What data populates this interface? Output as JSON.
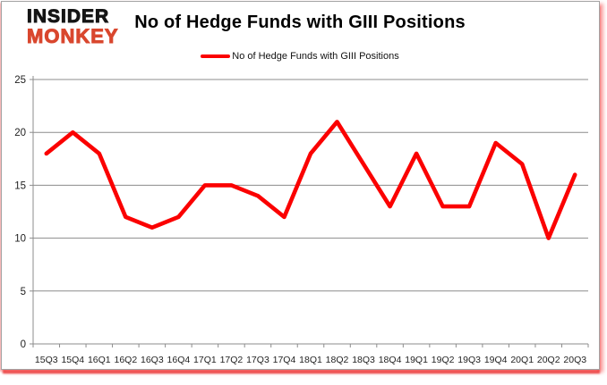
{
  "logo": {
    "line1": "INSIDER",
    "line2": "MONKEY"
  },
  "header": {
    "title": "No of Hedge Funds with GIII Positions"
  },
  "legend": {
    "label": "No of Hedge Funds with GIII Positions",
    "series_color": "#fb0000"
  },
  "colors": {
    "grid": "#8c8c8c",
    "axis": "#8c8c8c",
    "text": "#1f1f1f",
    "title_text": "#000000",
    "logo_black": "#151515",
    "logo_red": "#d9472e",
    "line_red": "#fb0000",
    "shadow_red": "#e41a1a"
  },
  "chart_data": {
    "type": "line",
    "title": "No of Hedge Funds with GIII Positions",
    "categories": [
      "15Q3",
      "15Q4",
      "16Q1",
      "16Q2",
      "16Q3",
      "16Q4",
      "17Q1",
      "17Q2",
      "17Q3",
      "17Q4",
      "18Q1",
      "18Q2",
      "18Q3",
      "18Q4",
      "19Q1",
      "19Q2",
      "19Q3",
      "19Q4",
      "20Q1",
      "20Q2",
      "20Q3"
    ],
    "series": [
      {
        "name": "No of Hedge Funds with GIII Positions",
        "color": "#fb0000",
        "values": [
          18,
          20,
          18,
          12,
          11,
          12,
          15,
          15,
          14,
          12,
          18,
          21,
          17,
          13,
          18,
          13,
          13,
          19,
          17,
          10,
          16
        ]
      }
    ],
    "xlabel": "",
    "ylabel": "",
    "ylim": [
      0,
      25
    ],
    "yticks": [
      0,
      5,
      10,
      15,
      20,
      25
    ],
    "grid": true,
    "legend_position": "top-center"
  }
}
